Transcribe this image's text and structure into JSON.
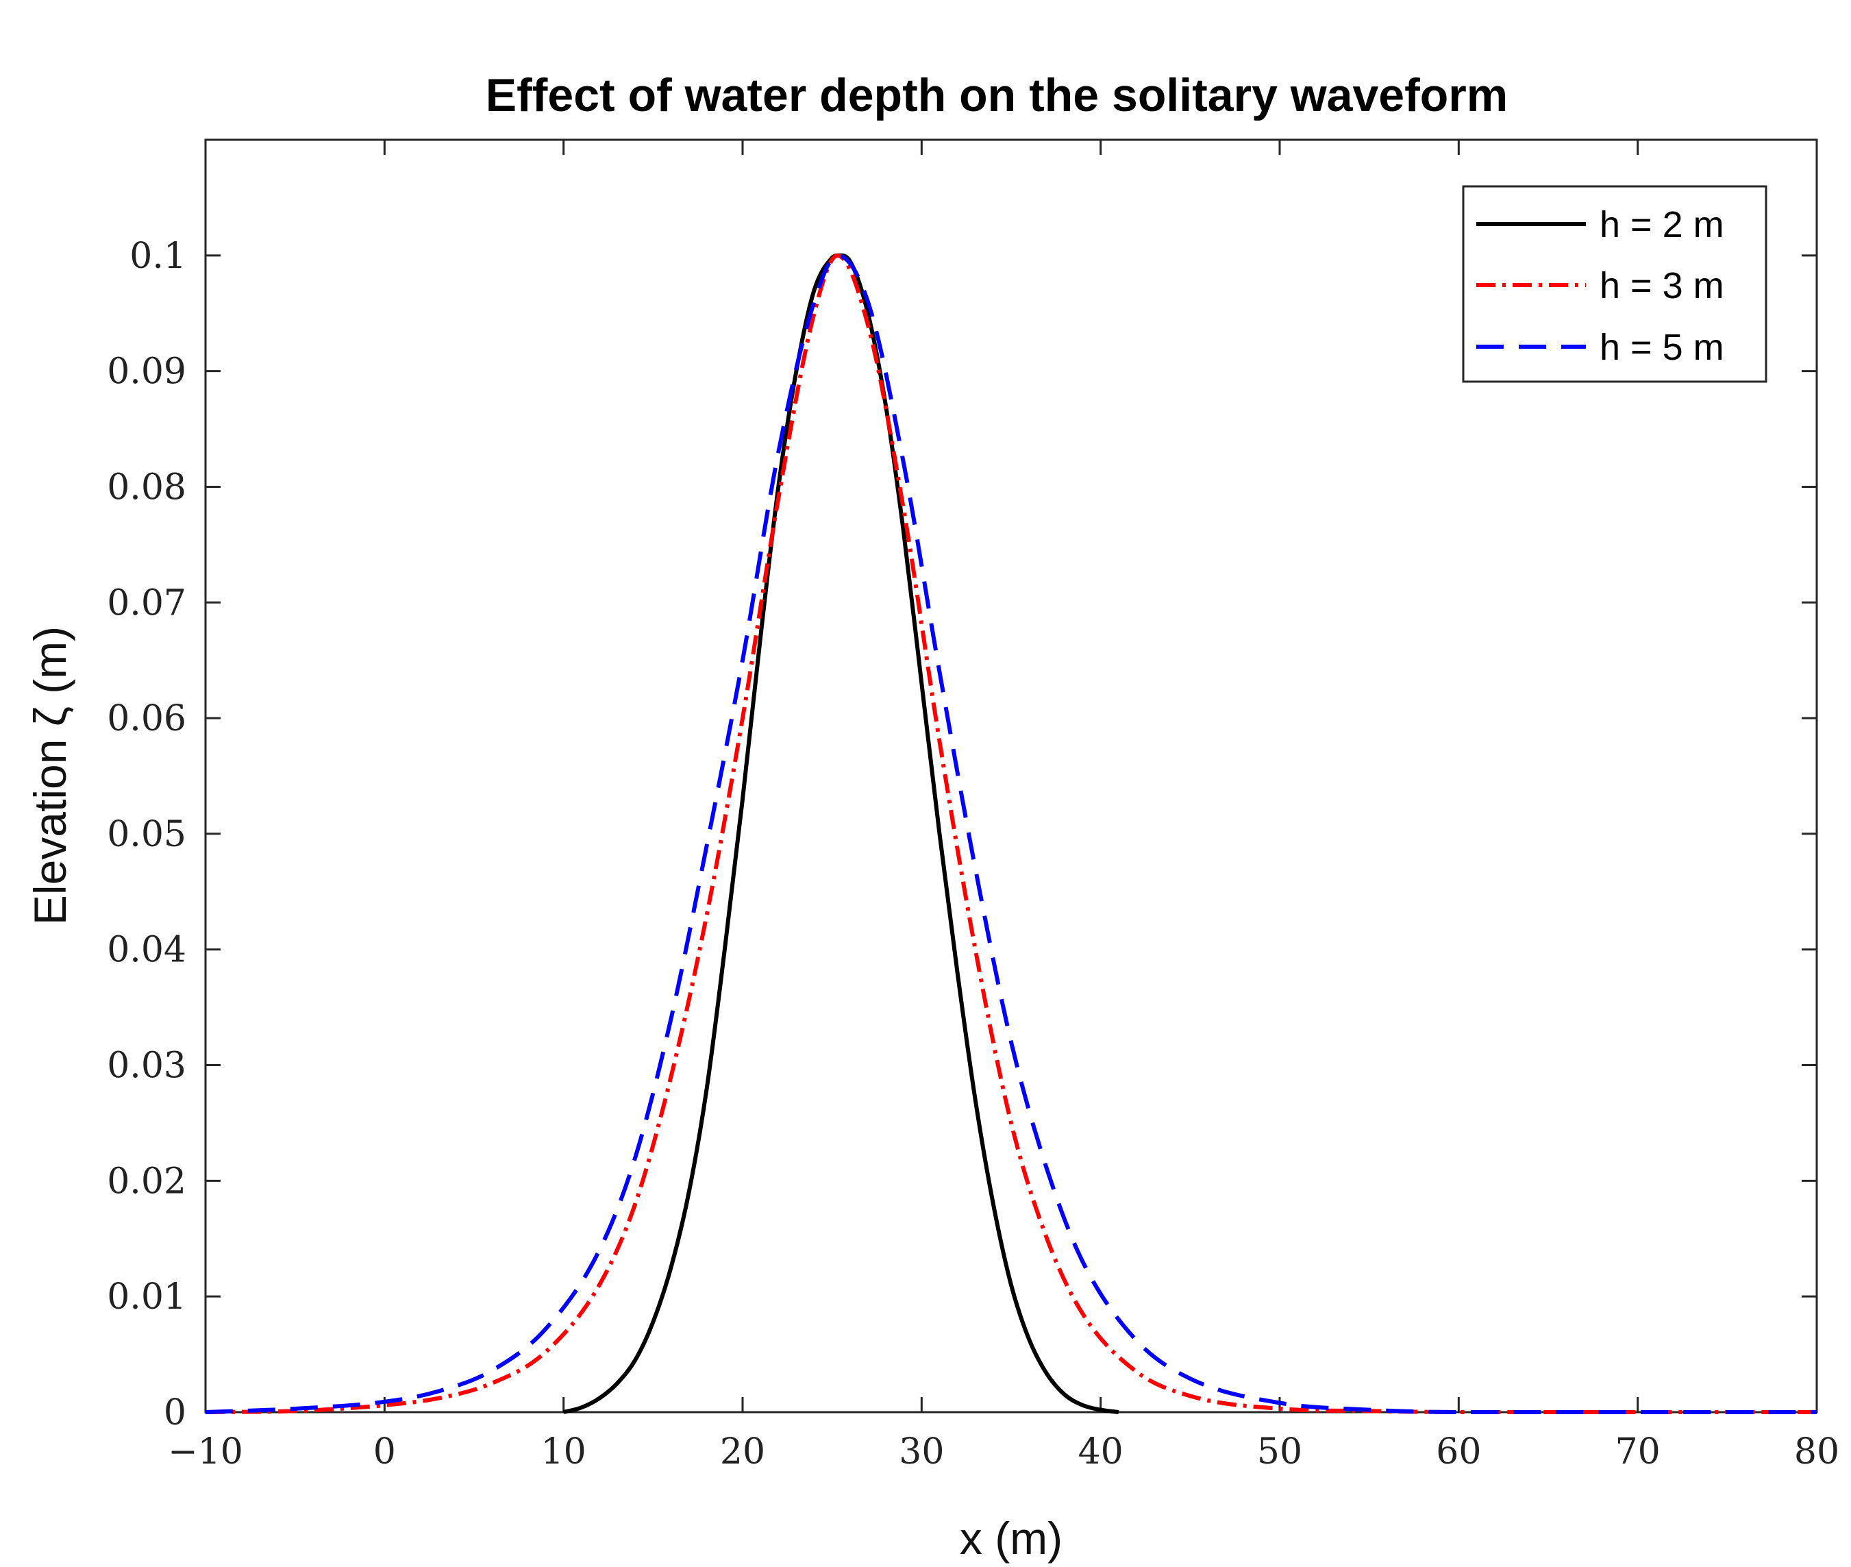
{
  "chart_data": {
    "type": "line",
    "title": "Effect of water depth on the solitary waveform",
    "xlabel": "x (m)",
    "ylabel": "Elevation ζ (m)",
    "xlim": [
      -10,
      80
    ],
    "ylim": [
      0,
      0.11
    ],
    "xticks": [
      -10,
      0,
      10,
      20,
      30,
      40,
      50,
      60,
      70,
      80
    ],
    "xtick_labels": [
      "−10",
      "0",
      "10",
      "20",
      "30",
      "40",
      "50",
      "60",
      "70",
      "80"
    ],
    "yticks": [
      0,
      0.01,
      0.02,
      0.03,
      0.04,
      0.05,
      0.06,
      0.07,
      0.08,
      0.09,
      0.1
    ],
    "ytick_labels": [
      "0",
      "0.01",
      "0.02",
      "0.03",
      "0.04",
      "0.05",
      "0.06",
      "0.07",
      "0.08",
      "0.09",
      "0.1"
    ],
    "grid": false,
    "legend_position": "top-right",
    "series": [
      {
        "name": "h = 2 m",
        "color": "#000000",
        "style": "solid",
        "x": [
          10,
          11,
          12,
          13,
          14,
          15,
          16,
          17,
          18,
          19,
          20,
          21,
          22,
          23,
          24,
          25,
          25.3,
          26,
          27,
          28,
          29,
          30,
          31,
          32,
          33,
          34,
          35,
          36,
          37,
          38,
          39,
          40,
          41
        ],
        "y": [
          0.0,
          0.0004,
          0.0012,
          0.0025,
          0.0045,
          0.0078,
          0.0125,
          0.019,
          0.028,
          0.04,
          0.053,
          0.067,
          0.08,
          0.09,
          0.097,
          0.0998,
          0.1,
          0.0995,
          0.095,
          0.087,
          0.076,
          0.063,
          0.05,
          0.038,
          0.027,
          0.018,
          0.011,
          0.0063,
          0.0033,
          0.0015,
          0.0006,
          0.0002,
          0.0
        ]
      },
      {
        "name": "h = 3 m",
        "color": "#ff0000",
        "style": "dashdot",
        "x": [
          -10,
          -5,
          0,
          3,
          6,
          9,
          12,
          14,
          16,
          18,
          20,
          22,
          24,
          25.3,
          27,
          29,
          31,
          33,
          35,
          37,
          39,
          42,
          45,
          50,
          55,
          60,
          70,
          80
        ],
        "y": [
          0.0,
          0.0001,
          0.0006,
          0.0012,
          0.0025,
          0.0052,
          0.011,
          0.018,
          0.029,
          0.043,
          0.06,
          0.079,
          0.095,
          0.1,
          0.094,
          0.078,
          0.058,
          0.04,
          0.025,
          0.015,
          0.0085,
          0.0035,
          0.0014,
          0.0003,
          0.0001,
          0.0,
          0.0,
          0.0
        ]
      },
      {
        "name": "h = 5 m",
        "color": "#0000ff",
        "style": "dashed",
        "x": [
          -10,
          -5,
          0,
          3,
          6,
          9,
          12,
          14,
          16,
          18,
          20,
          22,
          24,
          25.3,
          27,
          29,
          31,
          33,
          35,
          37,
          39,
          42,
          45,
          50,
          55,
          60,
          70,
          80
        ],
        "y": [
          0.0,
          0.0003,
          0.0009,
          0.0018,
          0.0036,
          0.0072,
          0.014,
          0.022,
          0.034,
          0.049,
          0.065,
          0.083,
          0.096,
          0.1,
          0.096,
          0.082,
          0.064,
          0.047,
          0.032,
          0.021,
          0.013,
          0.0062,
          0.0029,
          0.0008,
          0.0002,
          0.0,
          0.0,
          0.0
        ]
      }
    ]
  }
}
